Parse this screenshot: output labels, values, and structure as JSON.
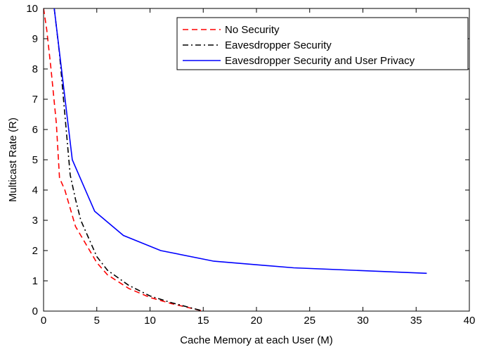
{
  "chart_data": {
    "type": "line",
    "title": "",
    "xlabel": "Cache Memory at each User (M)",
    "ylabel": "Multicast Rate (R)",
    "xlim": [
      0,
      40
    ],
    "ylim": [
      0,
      10
    ],
    "xticks": [
      0,
      5,
      10,
      15,
      20,
      25,
      30,
      35,
      40
    ],
    "yticks": [
      0,
      1,
      2,
      3,
      4,
      5,
      6,
      7,
      8,
      9,
      10
    ],
    "grid": false,
    "legend_position": "top-right",
    "series": [
      {
        "name": "No Security",
        "color": "#ff0000",
        "style": "dashed",
        "points": [
          [
            0,
            10
          ],
          [
            0.3,
            9.3
          ],
          [
            0.7,
            8.0
          ],
          [
            1.2,
            6.2
          ],
          [
            1.5,
            4.4
          ],
          [
            2.0,
            4.0
          ],
          [
            3.0,
            2.8
          ],
          [
            4.0,
            2.2
          ],
          [
            5.0,
            1.6
          ],
          [
            6.0,
            1.2
          ],
          [
            8.0,
            0.75
          ],
          [
            10.0,
            0.45
          ],
          [
            12.0,
            0.25
          ],
          [
            15.0,
            0.0
          ]
        ]
      },
      {
        "name": "Eavesdropper Security",
        "color": "#000000",
        "style": "dashdot",
        "points": [
          [
            1.0,
            10
          ],
          [
            1.5,
            8.5
          ],
          [
            2.0,
            6.5
          ],
          [
            2.5,
            4.5
          ],
          [
            3.0,
            3.7
          ],
          [
            3.5,
            3.0
          ],
          [
            4.0,
            2.6
          ],
          [
            5.0,
            1.8
          ],
          [
            6.0,
            1.35
          ],
          [
            8.0,
            0.85
          ],
          [
            10.0,
            0.5
          ],
          [
            12.0,
            0.28
          ],
          [
            15.0,
            0.0
          ]
        ]
      },
      {
        "name": "Eavesdropper Security and User Privacy",
        "color": "#0000ff",
        "style": "solid",
        "points": [
          [
            1.0,
            10
          ],
          [
            2.7,
            5.0
          ],
          [
            4.8,
            3.3
          ],
          [
            7.5,
            2.5
          ],
          [
            11.0,
            2.0
          ],
          [
            16.0,
            1.65
          ],
          [
            23.5,
            1.43
          ],
          [
            36.0,
            1.25
          ]
        ]
      }
    ]
  }
}
